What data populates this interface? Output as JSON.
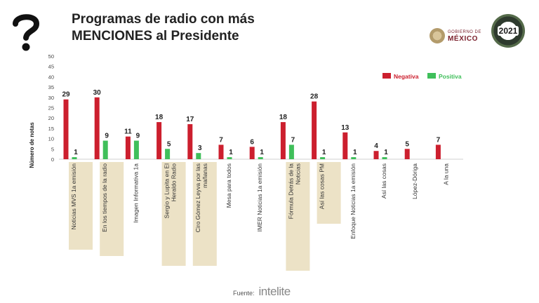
{
  "header": {
    "title_line1": "Programas de radio con más",
    "title_line2": "MENCIONES al Presidente"
  },
  "logos": {
    "gobierno_top": "GOBIERNO DE",
    "gobierno_bottom": "MÉXICO",
    "year": "2021"
  },
  "source": {
    "label": "Fuente:",
    "brand": "intelite"
  },
  "colors": {
    "negativa": "#cc1f2e",
    "positiva": "#3fbf5a",
    "highlight": "#ece2c6"
  },
  "chart_data": {
    "type": "bar",
    "ylabel": "Número de notas",
    "ylim": [
      0,
      50
    ],
    "yticks": [
      0,
      5,
      10,
      15,
      20,
      25,
      30,
      35,
      40,
      45,
      50
    ],
    "legend_position": "top-right",
    "categories": [
      "Noticias MVS 1a emisión",
      "En los tiempos de la radio",
      "Imagen Informativa 1a",
      "Sergio y Lupita en El Heraldo Radio",
      "Ciro Gómez Leyva por las mañanas",
      "Mesa para todos",
      "IMER Noticias 1a emisión",
      "Fórmula Detrás de la Noticias",
      "Así las cosas PM",
      "Enfoque Noticias 1a emisión",
      "Así las cosas",
      "López-Dóriga",
      "A la una"
    ],
    "highlighted": [
      true,
      true,
      false,
      true,
      true,
      false,
      false,
      true,
      true,
      false,
      false,
      false,
      false
    ],
    "series": [
      {
        "name": "Negativa",
        "values": [
          29,
          30,
          11,
          18,
          17,
          7,
          6,
          18,
          28,
          13,
          4,
          5,
          7
        ]
      },
      {
        "name": "Positiva",
        "values": [
          1,
          9,
          9,
          5,
          3,
          1,
          1,
          7,
          1,
          1,
          1,
          null,
          null
        ]
      }
    ]
  }
}
